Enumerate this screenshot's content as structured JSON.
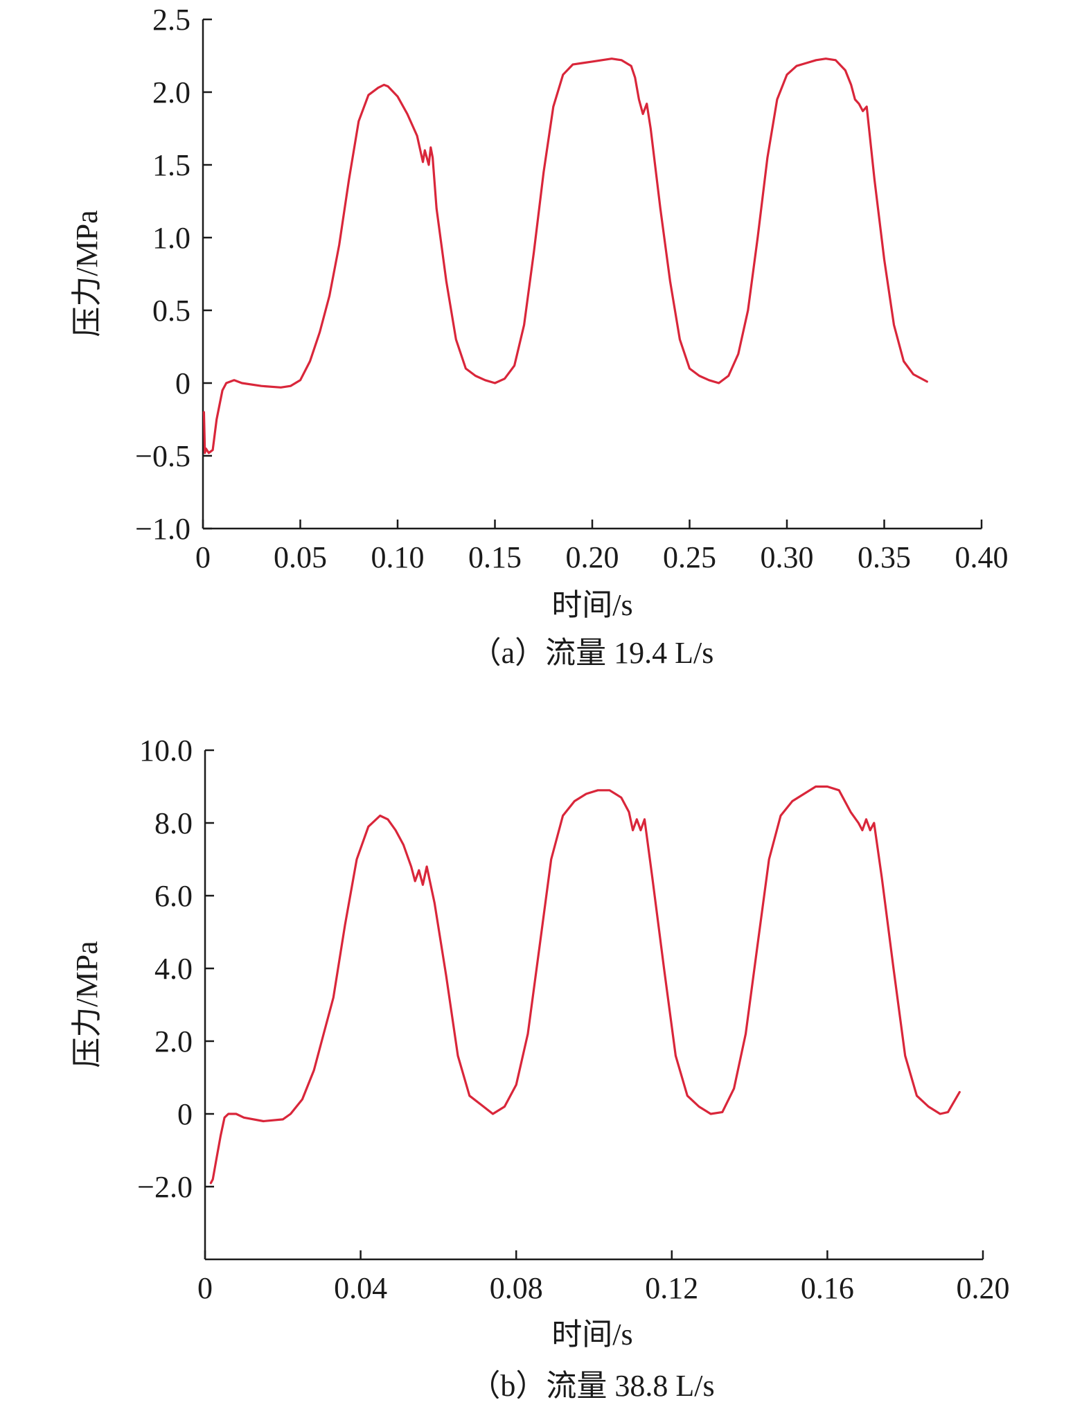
{
  "series_color": "#d9263a",
  "axis_color": "#1a1a1a",
  "chart_data": [
    {
      "type": "line",
      "caption": "（a）流量 19.4 L/s",
      "xlabel": "时间/s",
      "ylabel": "压力/MPa",
      "xlim": [
        0,
        0.4
      ],
      "ylim": [
        -1.0,
        2.5
      ],
      "x_ticks": [
        0,
        0.05,
        0.1,
        0.15,
        0.2,
        0.25,
        0.3,
        0.35,
        0.4
      ],
      "x_tick_labels": [
        "0",
        "0.05",
        "0.10",
        "0.15",
        "0.20",
        "0.25",
        "0.30",
        "0.35",
        "0.40"
      ],
      "y_ticks": [
        -1.0,
        -0.5,
        0,
        0.5,
        1.0,
        1.5,
        2.0,
        2.5
      ],
      "y_tick_labels": [
        "−1.0",
        "−0.5",
        "0",
        "0.5",
        "1.0",
        "1.5",
        "2.0",
        "2.5"
      ],
      "grid": false,
      "series": [
        {
          "x": [
            0.0005,
            0.001,
            0.0015,
            0.003,
            0.005,
            0.007,
            0.01,
            0.012,
            0.016,
            0.02,
            0.03,
            0.04,
            0.045,
            0.05,
            0.055,
            0.06,
            0.065,
            0.07,
            0.075,
            0.08,
            0.085,
            0.09,
            0.093,
            0.095,
            0.1,
            0.105,
            0.11,
            0.113,
            0.114,
            0.116,
            0.117,
            0.118,
            0.12,
            0.125,
            0.13,
            0.135,
            0.14,
            0.145,
            0.15,
            0.155,
            0.16,
            0.165,
            0.17,
            0.175,
            0.18,
            0.185,
            0.19,
            0.195,
            0.2,
            0.205,
            0.21,
            0.215,
            0.22,
            0.222,
            0.224,
            0.226,
            0.228,
            0.23,
            0.235,
            0.24,
            0.245,
            0.25,
            0.255,
            0.26,
            0.265,
            0.27,
            0.275,
            0.28,
            0.285,
            0.29,
            0.295,
            0.3,
            0.305,
            0.31,
            0.315,
            0.32,
            0.325,
            0.33,
            0.333,
            0.335,
            0.337,
            0.339,
            0.341,
            0.345,
            0.35,
            0.355,
            0.36,
            0.365,
            0.372
          ],
          "y": [
            -0.2,
            -0.48,
            -0.45,
            -0.48,
            -0.46,
            -0.25,
            -0.05,
            0.0,
            0.02,
            0.0,
            -0.02,
            -0.03,
            -0.02,
            0.02,
            0.15,
            0.35,
            0.6,
            0.95,
            1.4,
            1.8,
            1.98,
            2.03,
            2.05,
            2.04,
            1.97,
            1.85,
            1.7,
            1.52,
            1.6,
            1.5,
            1.62,
            1.55,
            1.2,
            0.7,
            0.3,
            0.1,
            0.05,
            0.02,
            0.0,
            0.03,
            0.12,
            0.4,
            0.9,
            1.45,
            1.9,
            2.12,
            2.19,
            2.2,
            2.21,
            2.22,
            2.23,
            2.22,
            2.18,
            2.1,
            1.95,
            1.85,
            1.92,
            1.75,
            1.2,
            0.7,
            0.3,
            0.1,
            0.05,
            0.02,
            0.0,
            0.05,
            0.2,
            0.5,
            1.0,
            1.55,
            1.95,
            2.12,
            2.18,
            2.2,
            2.22,
            2.23,
            2.22,
            2.15,
            2.05,
            1.95,
            1.92,
            1.87,
            1.9,
            1.4,
            0.85,
            0.4,
            0.15,
            0.06,
            0.01
          ]
        }
      ]
    },
    {
      "type": "line",
      "caption": "（b）流量 38.8 L/s",
      "xlabel": "时间/s",
      "ylabel": "压力/MPa",
      "xlim": [
        0,
        0.2
      ],
      "ylim": [
        -4.0,
        10.0
      ],
      "x_ticks": [
        0,
        0.04,
        0.08,
        0.12,
        0.16,
        0.2
      ],
      "x_tick_labels": [
        "0",
        "0.04",
        "0.08",
        "0.12",
        "0.16",
        "0.20"
      ],
      "y_ticks": [
        -2.0,
        0,
        2.0,
        4.0,
        6.0,
        8.0,
        10.0
      ],
      "y_tick_labels": [
        "−2.0",
        "0",
        "2.0",
        "4.0",
        "6.0",
        "8.0",
        "10.0"
      ],
      "grid": false,
      "series": [
        {
          "x": [
            0.0015,
            0.002,
            0.003,
            0.004,
            0.005,
            0.006,
            0.008,
            0.01,
            0.015,
            0.02,
            0.022,
            0.025,
            0.028,
            0.03,
            0.033,
            0.036,
            0.039,
            0.042,
            0.045,
            0.047,
            0.049,
            0.051,
            0.053,
            0.054,
            0.055,
            0.056,
            0.057,
            0.059,
            0.062,
            0.065,
            0.068,
            0.071,
            0.074,
            0.077,
            0.08,
            0.083,
            0.086,
            0.089,
            0.092,
            0.095,
            0.098,
            0.101,
            0.104,
            0.107,
            0.109,
            0.11,
            0.111,
            0.112,
            0.113,
            0.115,
            0.118,
            0.121,
            0.124,
            0.127,
            0.13,
            0.133,
            0.136,
            0.139,
            0.142,
            0.145,
            0.148,
            0.151,
            0.154,
            0.157,
            0.16,
            0.163,
            0.166,
            0.168,
            0.169,
            0.17,
            0.171,
            0.172,
            0.174,
            0.177,
            0.18,
            0.183,
            0.186,
            0.189,
            0.191,
            0.194
          ],
          "y": [
            -1.9,
            -1.8,
            -1.2,
            -0.6,
            -0.1,
            0.0,
            0.0,
            -0.1,
            -0.2,
            -0.15,
            0.0,
            0.4,
            1.2,
            2.0,
            3.2,
            5.2,
            7.0,
            7.9,
            8.2,
            8.1,
            7.8,
            7.4,
            6.8,
            6.4,
            6.7,
            6.3,
            6.8,
            5.8,
            3.8,
            1.6,
            0.5,
            0.25,
            0.0,
            0.2,
            0.8,
            2.2,
            4.6,
            7.0,
            8.2,
            8.6,
            8.8,
            8.9,
            8.9,
            8.7,
            8.3,
            7.8,
            8.1,
            7.8,
            8.1,
            6.5,
            4.0,
            1.6,
            0.5,
            0.2,
            0.0,
            0.05,
            0.7,
            2.2,
            4.6,
            7.0,
            8.2,
            8.6,
            8.8,
            9.0,
            9.0,
            8.9,
            8.3,
            8.0,
            7.8,
            8.1,
            7.8,
            8.0,
            6.5,
            4.0,
            1.6,
            0.5,
            0.2,
            0.0,
            0.05,
            0.6
          ]
        }
      ]
    }
  ]
}
